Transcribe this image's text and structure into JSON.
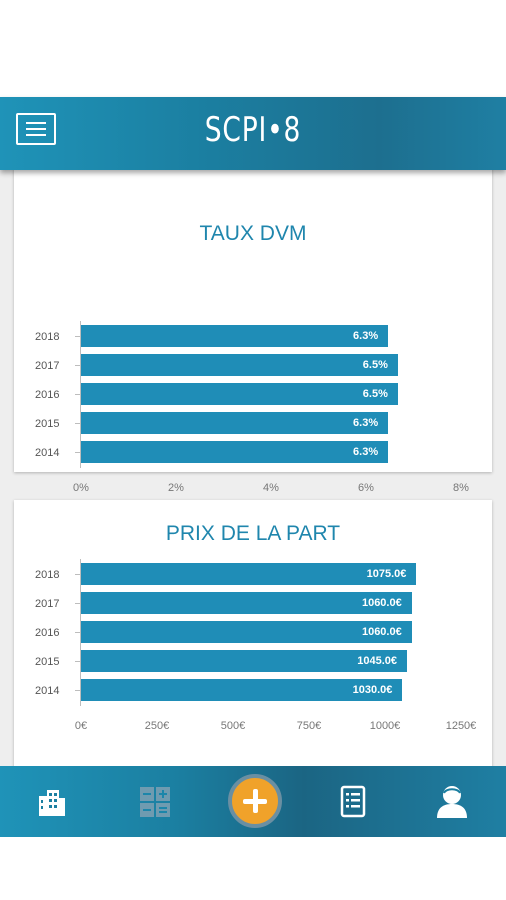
{
  "app": {
    "title": "SCPI•8"
  },
  "charts": {
    "dvm": {
      "title": "TAUX DVM",
      "labels": [
        "6.3%",
        "6.5%",
        "6.5%",
        "6.3%",
        "6.3%"
      ]
    },
    "prix": {
      "title": "PRIX DE LA PART",
      "labels": [
        "1075.0€",
        "1060.0€",
        "1060.0€",
        "1045.0€",
        "1030.0€"
      ]
    }
  },
  "chart_data": [
    {
      "type": "bar",
      "orientation": "horizontal",
      "title": "TAUX DVM",
      "categories": [
        "2018",
        "2017",
        "2016",
        "2015",
        "2014"
      ],
      "values": [
        6.3,
        6.5,
        6.5,
        6.3,
        6.3
      ],
      "unit": "%",
      "xlim": [
        0,
        8
      ],
      "xticks": [
        "0%",
        "2%",
        "4%",
        "6%",
        "8%"
      ],
      "color": "#1f8db7"
    },
    {
      "type": "bar",
      "orientation": "horizontal",
      "title": "PRIX DE LA PART",
      "categories": [
        "2018",
        "2017",
        "2016",
        "2015",
        "2014"
      ],
      "values": [
        1075.0,
        1060.0,
        1060.0,
        1045.0,
        1030.0
      ],
      "unit": "€",
      "xlim": [
        0,
        1250
      ],
      "xticks": [
        "0€",
        "250€",
        "500€",
        "750€",
        "1000€",
        "1250€"
      ],
      "color": "#1f8db7"
    }
  ],
  "nav": {
    "items": [
      {
        "icon": "building-icon"
      },
      {
        "icon": "calculator-icon"
      },
      {
        "icon": "add-icon"
      },
      {
        "icon": "document-list-icon"
      },
      {
        "icon": "user-icon"
      }
    ]
  },
  "colors": {
    "header": "#1b7fa1",
    "bar": "#1f8db7",
    "title": "#1f86ad",
    "fab": "#f0a22a"
  }
}
